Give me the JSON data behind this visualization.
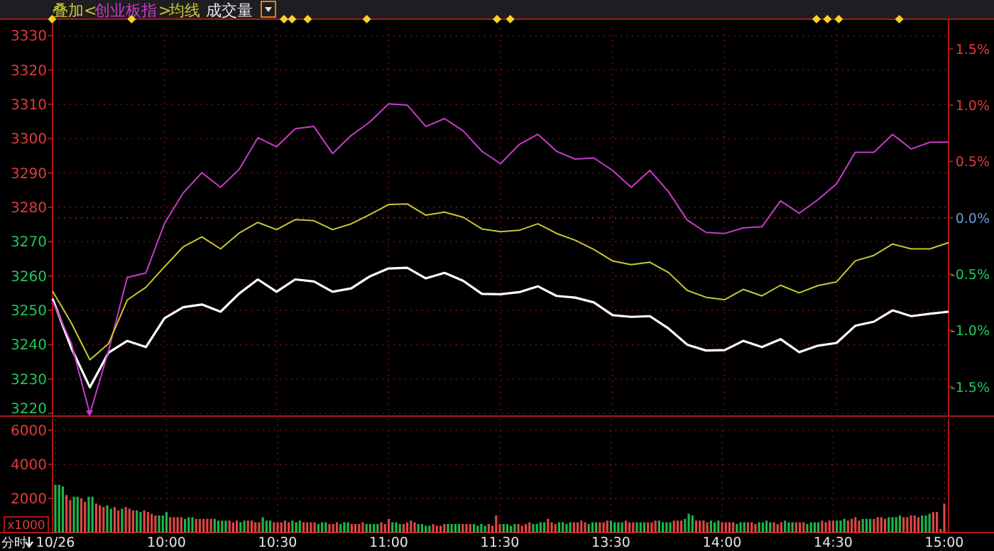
{
  "chart_data": [
    {
      "type": "line",
      "annotations": [
        "叠加<",
        ">",
        "成交量"
      ],
      "legend": "top left",
      "grid": true,
      "tick_labels": "y",
      "categories": [
        null,
        null,
        null,
        null,
        null,
        null,
        null,
        null,
        null,
        null,
        null,
        null,
        null,
        null,
        null,
        null,
        null,
        null,
        null,
        null,
        null,
        null,
        null,
        null,
        null,
        null,
        null,
        null,
        null,
        null,
        null,
        null,
        null,
        null,
        null,
        null,
        null,
        null,
        null,
        null,
        null,
        null,
        null,
        null,
        null,
        null,
        null,
        null,
        null
      ],
      "ylim": [
        3219.2,
        3332.1
      ],
      "yticks": [
        3220,
        3230,
        3240,
        3250,
        3260,
        3270,
        3280,
        3290,
        3300,
        3310,
        3320,
        3330
      ],
      "y2lim": [
        -1.76,
        1.68
      ],
      "y2ticks": [
        {
          "value": -1.5,
          "label": "-1.5%"
        },
        {
          "value": -1,
          "label": "-1.0%"
        },
        {
          "value": -0.5,
          "label": "-0.5%"
        },
        {
          "value": 0,
          "label": "0.0%"
        },
        {
          "value": 0.5,
          "label": "0.5%"
        },
        {
          "value": 1,
          "label": "1.0%"
        },
        {
          "value": 1.5,
          "label": "1.5%"
        }
      ],
      "ref_lines": [
        {
          "axis": "y2",
          "value": 0,
          "color": "#a01414",
          "line_style": "dotted"
        }
      ],
      "series": [
        {
          "color": "#ffffff",
          "values": [
            3253.4,
            3239.1,
            3227.6,
            3237.7,
            3241.1,
            3239.3,
            3247.7,
            3250.9,
            3251.7,
            3249.6,
            3254.9,
            3259,
            3255.4,
            3259,
            3258.4,
            3255.4,
            3256.4,
            3259.9,
            3262.2,
            3262.4,
            3259.3,
            3260.9,
            3258.6,
            3254.8,
            3254.7,
            3255.3,
            3257,
            3254.2,
            3253.7,
            3252.3,
            3248.6,
            3248.1,
            3248.3,
            3244.7,
            3240,
            3238.3,
            3238.4,
            3241.1,
            3239.3,
            3241.6,
            3237.8,
            3239.7,
            3240.5,
            3245.5,
            3246.7,
            3250,
            3248.3,
            3249,
            3249.6
          ]
        },
        {
          "name": "创业板指",
          "color": "#c83cc8",
          "axis": "y2",
          "values": [
            -0.74,
            -1.11,
            -1.74,
            -1.18,
            -0.53,
            -0.49,
            -0.05,
            0.22,
            0.4,
            0.27,
            0.43,
            0.71,
            0.63,
            0.79,
            0.81,
            0.57,
            0.73,
            0.85,
            1.01,
            1.0,
            0.81,
            0.88,
            0.77,
            0.59,
            0.48,
            0.65,
            0.74,
            0.59,
            0.52,
            0.53,
            0.42,
            0.27,
            0.42,
            0.23,
            -0.02,
            -0.13,
            -0.14,
            -0.09,
            -0.08,
            0.15,
            0.04,
            0.16,
            0.3,
            0.58,
            0.58,
            0.74,
            0.61,
            0.67,
            0.67
          ]
        },
        {
          "name": "均线",
          "color": "#c8c832",
          "values": [
            3255.6,
            3246.4,
            3235.6,
            3240.3,
            3253,
            3256.7,
            3262.7,
            3268.5,
            3271.4,
            3267.9,
            3272.5,
            3275.6,
            3273.5,
            3276.4,
            3276.1,
            3273.5,
            3275.2,
            3277.9,
            3280.8,
            3281,
            3277.7,
            3278.6,
            3277.1,
            3273.7,
            3272.9,
            3273.3,
            3275.2,
            3272.4,
            3270.4,
            3267.7,
            3264.4,
            3263.3,
            3264,
            3261,
            3255.8,
            3253.8,
            3253.1,
            3256.1,
            3254.2,
            3257.3,
            3255.1,
            3257.2,
            3258.3,
            3264.4,
            3266,
            3269.3,
            3267.9,
            3267.9,
            3269.7
          ]
        }
      ]
    },
    {
      "type": "bar",
      "annotations": [
        "x1000",
        "分时"
      ],
      "grid": true,
      "categories": [
        "10/26",
        null,
        null,
        null,
        null,
        null,
        null,
        null,
        null,
        null,
        null,
        null,
        null,
        null,
        null,
        null,
        null,
        null,
        null,
        null,
        null,
        null,
        null,
        null,
        null,
        null,
        null,
        null,
        null,
        null,
        "10:00",
        null,
        null,
        null,
        null,
        null,
        null,
        null,
        null,
        null,
        null,
        null,
        null,
        null,
        null,
        null,
        null,
        null,
        null,
        null,
        null,
        null,
        null,
        null,
        null,
        null,
        null,
        null,
        null,
        null,
        "10:30",
        null,
        null,
        null,
        null,
        null,
        null,
        null,
        null,
        null,
        null,
        null,
        null,
        null,
        null,
        null,
        null,
        null,
        null,
        null,
        null,
        null,
        null,
        null,
        null,
        null,
        null,
        null,
        null,
        null,
        "11:00",
        null,
        null,
        null,
        null,
        null,
        null,
        null,
        null,
        null,
        null,
        null,
        null,
        null,
        null,
        null,
        null,
        null,
        null,
        null,
        null,
        null,
        null,
        null,
        null,
        null,
        null,
        null,
        null,
        null,
        "11:30",
        null,
        null,
        null,
        null,
        null,
        null,
        null,
        null,
        null,
        null,
        null,
        null,
        null,
        null,
        null,
        null,
        null,
        null,
        null,
        null,
        null,
        null,
        null,
        null,
        null,
        null,
        null,
        null,
        null,
        "13:30",
        null,
        null,
        null,
        null,
        null,
        null,
        null,
        null,
        null,
        null,
        null,
        null,
        null,
        null,
        null,
        null,
        null,
        null,
        null,
        null,
        null,
        null,
        null,
        null,
        null,
        null,
        null,
        null,
        null,
        "14:00",
        null,
        null,
        null,
        null,
        null,
        null,
        null,
        null,
        null,
        null,
        null,
        null,
        null,
        null,
        null,
        null,
        null,
        null,
        null,
        null,
        null,
        null,
        null,
        null,
        null,
        null,
        null,
        null,
        null,
        "14:30",
        null,
        null,
        null,
        null,
        null,
        null,
        null,
        null,
        null,
        null,
        null,
        null,
        null,
        null,
        null,
        null,
        null,
        null,
        null,
        null,
        null,
        null,
        null,
        null,
        null,
        null,
        null,
        null,
        null,
        "15:00"
      ],
      "ylim": [
        0,
        6660
      ],
      "yticks": [
        2000,
        4000,
        6000
      ],
      "values": [
        2800,
        2800,
        2700,
        2200,
        1900,
        2100,
        2100,
        2000,
        1800,
        2100,
        2100,
        1700,
        1600,
        1500,
        1600,
        1400,
        1500,
        1300,
        1400,
        1500,
        1400,
        1300,
        1300,
        1200,
        1300,
        1200,
        1100,
        1000,
        1000,
        1000,
        1200,
        900,
        900,
        900,
        900,
        800,
        900,
        900,
        800,
        800,
        800,
        800,
        800,
        800,
        700,
        700,
        700,
        700,
        600,
        700,
        600,
        700,
        700,
        700,
        600,
        600,
        900,
        700,
        700,
        600,
        600,
        600,
        700,
        600,
        700,
        600,
        700,
        600,
        600,
        600,
        600,
        500,
        600,
        600,
        500,
        500,
        600,
        500,
        600,
        600,
        500,
        500,
        500,
        600,
        500,
        500,
        500,
        500,
        600,
        500,
        800,
        600,
        600,
        500,
        500,
        600,
        700,
        600,
        500,
        500,
        400,
        400,
        500,
        400,
        400,
        500,
        500,
        500,
        500,
        500,
        500,
        500,
        500,
        500,
        400,
        500,
        400,
        500,
        400,
        1000,
        500,
        500,
        500,
        400,
        500,
        500,
        400,
        500,
        600,
        500,
        500,
        600,
        600,
        800,
        600,
        500,
        600,
        600,
        500,
        600,
        600,
        600,
        700,
        600,
        500,
        600,
        600,
        600,
        600,
        700,
        700,
        600,
        600,
        600,
        700,
        600,
        600,
        600,
        600,
        600,
        600,
        600,
        700,
        700,
        600,
        600,
        600,
        700,
        700,
        700,
        800,
        1100,
        1000,
        700,
        700,
        700,
        600,
        700,
        600,
        700,
        600,
        600,
        600,
        600,
        500,
        600,
        600,
        600,
        600,
        500,
        600,
        600,
        700,
        600,
        600,
        500,
        600,
        700,
        600,
        600,
        600,
        600,
        600,
        500,
        600,
        600,
        600,
        700,
        600,
        700,
        700,
        700,
        700,
        800,
        700,
        800,
        900,
        700,
        800,
        800,
        800,
        800,
        900,
        900,
        800,
        900,
        900,
        900,
        1000,
        900,
        900,
        1000,
        1000,
        900,
        1000,
        1000,
        1100,
        1200,
        1200,
        200,
        1700
      ],
      "colors": [
        "#1db64a",
        "#1db64a",
        "#1db64a",
        "#e04646",
        "#e04646",
        "#1db64a",
        "#1db64a",
        "#e04646",
        "#e04646",
        "#1db64a",
        "#1db64a",
        "#e04646",
        "#e04646",
        "#e04646",
        "#1db64a",
        "#1db64a",
        "#e04646",
        "#e04646",
        "#1db64a",
        "#e04646",
        "#e04646",
        "#e04646",
        "#1db64a",
        "#1db64a",
        "#e04646",
        "#e04646",
        "#e04646",
        "#e04646",
        "#1db64a",
        "#1db64a",
        "#1db64a",
        "#e04646",
        "#e04646",
        "#e04646",
        "#e04646",
        "#1db64a",
        "#1db64a",
        "#1db64a",
        "#e04646",
        "#e04646",
        "#e04646",
        "#e04646",
        "#e04646",
        "#1db64a",
        "#1db64a",
        "#1db64a",
        "#1db64a",
        "#e04646",
        "#e04646",
        "#e04646",
        "#1db64a",
        "#1db64a",
        "#e04646",
        "#e04646",
        "#e04646",
        "#e04646",
        "#1db64a",
        "#1db64a",
        "#1db64a",
        "#e04646",
        "#e04646",
        "#e04646",
        "#e04646",
        "#e04646",
        "#1db64a",
        "#1db64a",
        "#1db64a",
        "#e04646",
        "#e04646",
        "#e04646",
        "#e04646",
        "#1db64a",
        "#1db64a",
        "#1db64a",
        "#e04646",
        "#e04646",
        "#e04646",
        "#1db64a",
        "#1db64a",
        "#1db64a",
        "#e04646",
        "#e04646",
        "#e04646",
        "#e04646",
        "#1db64a",
        "#1db64a",
        "#1db64a",
        "#1db64a",
        "#e04646",
        "#e04646",
        "#e04646",
        "#1db64a",
        "#1db64a",
        "#1db64a",
        "#e04646",
        "#e04646",
        "#e04646",
        "#e04646",
        "#1db64a",
        "#1db64a",
        "#1db64a",
        "#1db64a",
        "#e04646",
        "#e04646",
        "#e04646",
        "#e04646",
        "#1db64a",
        "#1db64a",
        "#1db64a",
        "#1db64a",
        "#e04646",
        "#e04646",
        "#e04646",
        "#1db64a",
        "#1db64a",
        "#1db64a",
        "#1db64a",
        "#e04646",
        "#e04646",
        "#e04646",
        "#e04646",
        "#1db64a",
        "#1db64a",
        "#1db64a",
        "#1db64a",
        "#e04646",
        "#e04646",
        "#e04646",
        "#e04646",
        "#1db64a",
        "#1db64a",
        "#1db64a",
        "#1db64a",
        "#e04646",
        "#e04646",
        "#e04646",
        "#1db64a",
        "#1db64a",
        "#1db64a",
        "#1db64a",
        "#e04646",
        "#e04646",
        "#e04646",
        "#e04646",
        "#1db64a",
        "#1db64a",
        "#1db64a",
        "#e04646",
        "#e04646",
        "#e04646",
        "#1db64a",
        "#1db64a",
        "#1db64a",
        "#1db64a",
        "#e04646",
        "#e04646",
        "#e04646",
        "#1db64a",
        "#1db64a",
        "#1db64a",
        "#e04646",
        "#e04646",
        "#e04646",
        "#1db64a",
        "#1db64a",
        "#1db64a",
        "#1db64a",
        "#e04646",
        "#e04646",
        "#e04646",
        "#1db64a",
        "#1db64a",
        "#1db64a",
        "#e04646",
        "#e04646",
        "#e04646",
        "#e04646",
        "#1db64a",
        "#1db64a",
        "#1db64a",
        "#e04646",
        "#e04646",
        "#e04646",
        "#e04646",
        "#1db64a",
        "#1db64a",
        "#1db64a",
        "#e04646",
        "#e04646",
        "#e04646",
        "#1db64a",
        "#1db64a",
        "#1db64a",
        "#1db64a",
        "#e04646",
        "#e04646",
        "#e04646",
        "#1db64a",
        "#1db64a",
        "#1db64a",
        "#e04646",
        "#e04646",
        "#e04646",
        "#1db64a",
        "#1db64a",
        "#1db64a",
        "#1db64a",
        "#e04646",
        "#e04646",
        "#e04646",
        "#e04646",
        "#1db64a",
        "#1db64a",
        "#1db64a",
        "#e04646",
        "#e04646",
        "#e04646",
        "#e04646",
        "#1db64a",
        "#1db64a",
        "#1db64a",
        "#e04646",
        "#e04646",
        "#e04646",
        "#e04646",
        "#1db64a",
        "#1db64a",
        "#1db64a",
        "#1db64a",
        "#e04646",
        "#e04646",
        "#e04646",
        "#e04646",
        "#e04646",
        "#1db64a",
        "#1db64a",
        "#1db64a",
        "#e04646",
        "#e04646",
        "#e04646",
        "#e04646"
      ]
    }
  ]
}
